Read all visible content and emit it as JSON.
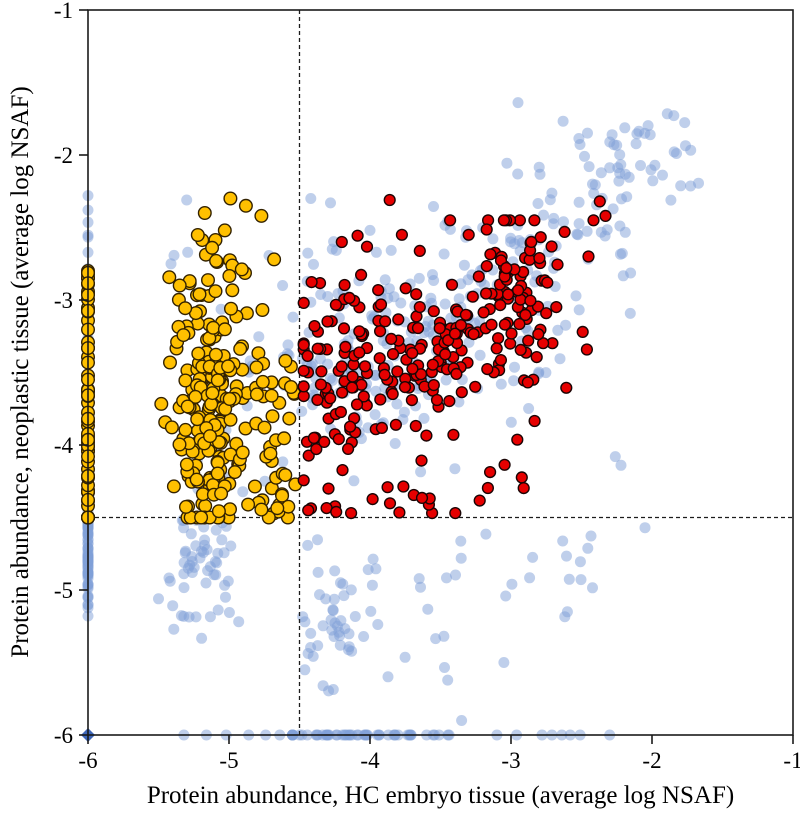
{
  "chart_data": {
    "type": "scatter",
    "title": "",
    "xlabel": "Protein abundance, HC embryo tissue (average log NSAF)",
    "ylabel": "Protein abundance, neoplastic tissue (average log NSAF)",
    "xlim": [
      -6,
      -1
    ],
    "ylim": [
      -6,
      -1
    ],
    "x_ticks": [
      -6,
      -5,
      -4,
      -3,
      -2,
      -1
    ],
    "y_ticks": [
      -1,
      -2,
      -3,
      -4,
      -5,
      -6
    ],
    "grid": false,
    "legend": "none",
    "threshold_x": -4.5,
    "threshold_y": -4.5,
    "threshold_line_color": "#1c1c1c",
    "axis_color": "#1a1a1a",
    "corner_marker": {
      "x": -6,
      "y": -6,
      "shape": "diamond",
      "color": "#3e66b8",
      "size": 7
    },
    "series": [
      {
        "name": "all-proteins-background",
        "marker": "circle",
        "color": "#7f9fd7",
        "stroke": "none",
        "stroke_width": 0,
        "opacity": 0.5,
        "radius": 5.5,
        "seed": 101,
        "clusters": [
          {
            "kind": "gauss",
            "n": 55,
            "cx": -6,
            "cy": -4.72,
            "sx": 0,
            "sy": 0.17,
            "clamp": [
              -6,
              -6,
              -5.15,
              -4.5
            ]
          },
          {
            "kind": "uniform",
            "n": 16,
            "x0": -6,
            "x1": -6,
            "y0": -5.18,
            "y1": -4.55
          },
          {
            "kind": "uniform",
            "n": 25,
            "x0": -6,
            "x1": -6,
            "y0": -4.5,
            "y1": -2.45
          },
          {
            "kind": "points",
            "pts": [
              [
                -6,
                -2.28
              ],
              [
                -6,
                -2.38
              ]
            ]
          },
          {
            "kind": "gauss",
            "n": 38,
            "cx": -4.22,
            "cy": -6,
            "sx": 0.2,
            "sy": 0,
            "clamp": [
              -4.55,
              -3.8,
              -6,
              -6
            ]
          },
          {
            "kind": "uniform",
            "n": 14,
            "x0": -3.85,
            "x1": -3.4,
            "y0": -6,
            "y1": -6
          },
          {
            "kind": "points",
            "pts": [
              [
                -5.32,
                -6
              ],
              [
                -5.16,
                -6
              ],
              [
                -5.02,
                -6
              ],
              [
                -4.86,
                -6
              ],
              [
                -4.74,
                -6
              ],
              [
                -4.64,
                -6
              ],
              [
                -3.1,
                -6
              ],
              [
                -2.96,
                -6
              ],
              [
                -2.78,
                -6
              ],
              [
                -2.71,
                -6
              ],
              [
                -2.64,
                -6
              ],
              [
                -2.58,
                -6
              ],
              [
                -2.51,
                -6
              ],
              [
                -2.3,
                -6
              ]
            ]
          },
          {
            "kind": "band",
            "n": 200,
            "x0": -4.45,
            "y0": -3.75,
            "x1": -2.3,
            "y1": -2.25,
            "s": 0.28
          },
          {
            "kind": "band",
            "n": 30,
            "x0": -2.3,
            "y0": -2.25,
            "x1": -1.75,
            "y1": -1.8,
            "s": 0.17
          },
          {
            "kind": "uniform",
            "n": 12,
            "x0": -2.6,
            "x1": -1.72,
            "y0": -2.42,
            "y1": -1.72
          },
          {
            "kind": "uniform",
            "n": 22,
            "x0": -5.5,
            "x1": -4.55,
            "y0": -4.45,
            "y1": -2.5
          },
          {
            "kind": "points",
            "pts": [
              [
                -5.3,
                -2.31
              ],
              [
                -4.42,
                -2.3
              ],
              [
                -4.0,
                -2.52
              ],
              [
                -4.62,
                -2.9
              ],
              [
                -4.85,
                -3.42
              ],
              [
                -4.28,
                -2.33
              ]
            ]
          },
          {
            "kind": "gauss",
            "n": 45,
            "cx": -5.18,
            "cy": -4.78,
            "sx": 0.14,
            "sy": 0.18,
            "clamp": [
              -5.5,
              -4.85,
              -5.5,
              -4.52
            ]
          },
          {
            "kind": "uniform",
            "n": 10,
            "x0": -5.45,
            "x1": -4.9,
            "y0": -5.5,
            "y1": -5.0
          },
          {
            "kind": "gauss",
            "n": 32,
            "cx": -4.22,
            "cy": -5.18,
            "sx": 0.16,
            "sy": 0.18,
            "clamp": [
              -4.55,
              -3.85,
              -5.55,
              -4.85
            ]
          },
          {
            "kind": "uniform",
            "n": 28,
            "x0": -4.5,
            "x1": -3.3,
            "y0": -5.7,
            "y1": -4.55
          },
          {
            "kind": "uniform",
            "n": 14,
            "x0": -3.3,
            "x1": -2.4,
            "y0": -5.2,
            "y1": -4.6
          },
          {
            "kind": "points",
            "pts": [
              [
                -3.35,
                -5.9
              ],
              [
                -3.05,
                -5.5
              ],
              [
                -2.6,
                -5.15
              ],
              [
                -2.05,
                -4.57
              ],
              [
                -2.26,
                -4.08
              ],
              [
                -2.22,
                -4.14
              ]
            ]
          },
          {
            "kind": "uniform",
            "n": 14,
            "x0": -4.5,
            "x1": -3.9,
            "y0": -3.1,
            "y1": -2.55
          },
          {
            "kind": "uniform",
            "n": 30,
            "x0": -4.4,
            "x1": -2.7,
            "y0": -4.2,
            "y1": -3.0
          }
        ]
      },
      {
        "name": "neoplastic-enriched",
        "marker": "circle",
        "color": "#ffc000",
        "stroke": "#332200",
        "stroke_width": 1.4,
        "opacity": 1,
        "radius": 6.3,
        "seed": 202,
        "clusters": [
          {
            "kind": "uniform",
            "n": 46,
            "x0": -6,
            "x1": -6,
            "y0": -4.5,
            "y1": -2.75
          },
          {
            "kind": "gauss",
            "n": 18,
            "cx": -6,
            "cy": -4.15,
            "sx": 0,
            "sy": 0.28,
            "clamp": [
              -6,
              -6,
              -4.5,
              -3.4
            ]
          },
          {
            "kind": "gauss",
            "n": 150,
            "cx": -5.17,
            "cy": -3.85,
            "sx": 0.14,
            "sy": 0.42,
            "clamp": [
              -5.48,
              -4.53,
              -4.5,
              -2.3
            ]
          },
          {
            "kind": "gauss",
            "n": 50,
            "cx": -5.1,
            "cy": -3.05,
            "sx": 0.15,
            "sy": 0.33,
            "clamp": [
              -5.45,
              -4.6,
              -4.5,
              -2.28
            ]
          },
          {
            "kind": "uniform",
            "n": 26,
            "x0": -4.85,
            "x1": -4.53,
            "y0": -4.5,
            "y1": -3.35
          },
          {
            "kind": "gauss",
            "n": 14,
            "cx": -4.68,
            "cy": -4.35,
            "sx": 0.09,
            "sy": 0.1,
            "clamp": [
              -4.9,
              -4.53,
              -4.5,
              -4.05
            ]
          },
          {
            "kind": "points",
            "pts": [
              [
                -4.99,
                -2.3
              ],
              [
                -4.88,
                -2.35
              ],
              [
                -4.77,
                -2.42
              ],
              [
                -5.03,
                -2.52
              ],
              [
                -5.12,
                -2.64
              ],
              [
                -4.68,
                -2.72
              ],
              [
                -5.35,
                -2.9
              ],
              [
                -4.6,
                -3.42
              ],
              [
                -4.56,
                -3.6
              ]
            ]
          }
        ]
      },
      {
        "name": "shared-abundant",
        "marker": "circle",
        "color": "#e60000",
        "stroke": "#1a0505",
        "stroke_width": 1.4,
        "opacity": 1,
        "radius": 5.4,
        "seed": 303,
        "clusters": [
          {
            "kind": "band",
            "n": 120,
            "x0": -4.35,
            "y0": -3.8,
            "x1": -2.8,
            "y1": -2.8,
            "s": 0.17,
            "clamp": [
              -4.47,
              -2.3,
              -4.47,
              -2.3
            ]
          },
          {
            "kind": "gauss",
            "n": 55,
            "cx": -4.05,
            "cy": -3.2,
            "sx": 0.22,
            "sy": 0.3,
            "clamp": [
              -4.47,
              -3.5,
              -4.0,
              -2.55
            ]
          },
          {
            "kind": "gauss",
            "n": 55,
            "cx": -2.95,
            "cy": -3.0,
            "sx": 0.25,
            "sy": 0.28,
            "clamp": [
              -3.6,
              -2.32,
              -3.8,
              -2.45
            ]
          },
          {
            "kind": "uniform",
            "n": 40,
            "x0": -4.45,
            "x1": -2.6,
            "y0": -4.45,
            "y1": -3.2
          },
          {
            "kind": "gauss",
            "n": 16,
            "cx": -3.7,
            "cy": -4.4,
            "sx": 0.45,
            "sy": 0.06,
            "clamp": [
              -4.47,
              -2.85,
              -4.47,
              -4.25
            ]
          },
          {
            "kind": "gauss",
            "n": 14,
            "cx": -4.44,
            "cy": -3.9,
            "sx": 0.05,
            "sy": 0.35,
            "clamp": [
              -4.47,
              -4.3,
              -4.45,
              -3.3
            ]
          },
          {
            "kind": "points",
            "pts": [
              [
                -3.86,
                -2.31
              ],
              [
                -2.33,
                -2.42
              ],
              [
                -2.37,
                -2.32
              ],
              [
                -2.62,
                -2.53
              ],
              [
                -4.2,
                -2.6
              ],
              [
                -2.45,
                -2.7
              ],
              [
                -3.05,
                -2.45
              ],
              [
                -3.3,
                -2.55
              ]
            ]
          }
        ]
      }
    ]
  },
  "layout_values": {
    "tick_font_px": 23
  }
}
